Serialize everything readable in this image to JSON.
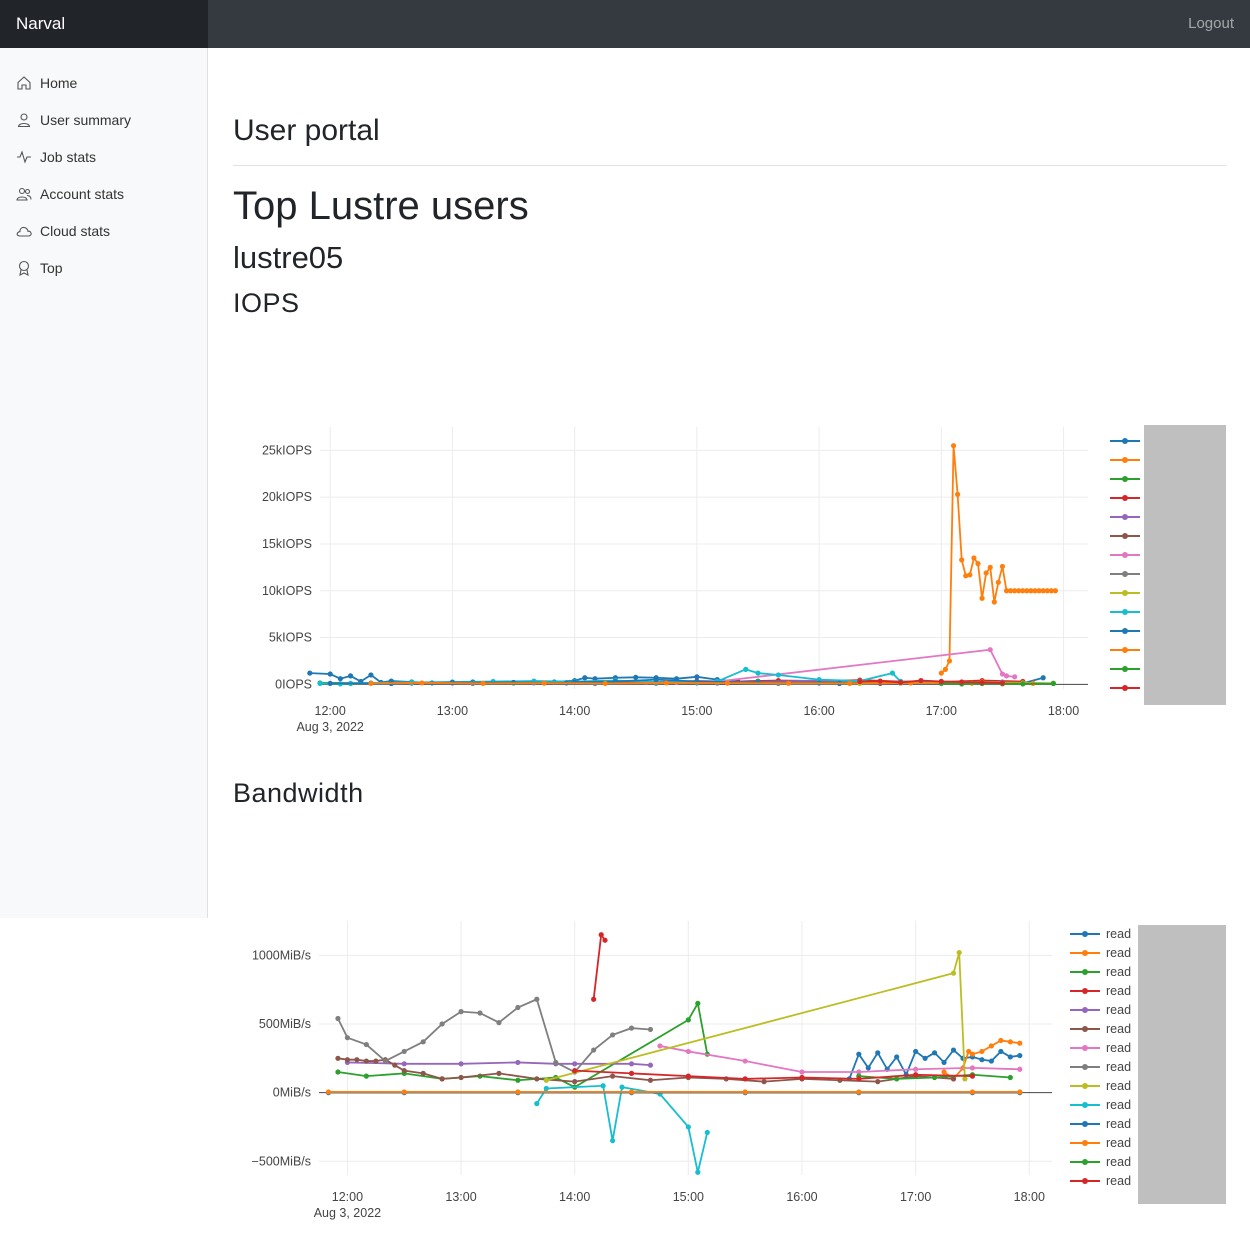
{
  "header": {
    "brand": "Narval",
    "logout": "Logout"
  },
  "sidebar": {
    "items": [
      {
        "label": "Home",
        "icon": "home-icon"
      },
      {
        "label": "User summary",
        "icon": "person-icon"
      },
      {
        "label": "Job stats",
        "icon": "activity-icon"
      },
      {
        "label": "Account stats",
        "icon": "people-icon"
      },
      {
        "label": "Cloud stats",
        "icon": "cloud-icon"
      },
      {
        "label": "Top",
        "icon": "award-icon"
      }
    ]
  },
  "main": {
    "title": "User portal",
    "section_title": "Top Lustre users",
    "filesystem": "lustre05",
    "iops_title": "IOPS",
    "bandwidth_title": "Bandwidth"
  },
  "chart_data": [
    {
      "type": "line",
      "title": "IOPS",
      "x_ticks": [
        "12:00",
        "13:00",
        "14:00",
        "15:00",
        "16:00",
        "17:00",
        "18:00"
      ],
      "x_date_label": "Aug 3, 2022",
      "xlim": [
        "11:55",
        "18:12"
      ],
      "y_ticks": [
        "0IOPS",
        "5kIOPS",
        "10kIOPS",
        "15kIOPS",
        "20kIOPS",
        "25kIOPS"
      ],
      "ylim": [
        -500,
        27500
      ],
      "grid": true,
      "legend_placement": "right",
      "colors": [
        "#1f77b4",
        "#ff7f0e",
        "#2ca02c",
        "#d62728",
        "#9467bd",
        "#8c564b",
        "#e377c2",
        "#7f7f7f",
        "#bcbd22",
        "#17becf",
        "#1f77b4",
        "#ff7f0e",
        "#2ca02c",
        "#d62728"
      ],
      "series": [
        {
          "x": [
            "11:50",
            "12:00",
            "12:05",
            "12:10",
            "12:15",
            "12:20",
            "12:25",
            "12:30",
            "12:40",
            "12:50",
            "13:00",
            "13:10",
            "13:20",
            "13:30",
            "13:40",
            "13:50",
            "14:00",
            "14:05",
            "14:10",
            "14:20",
            "14:30",
            "14:40",
            "14:50",
            "15:00",
            "15:10",
            "15:20",
            "15:30",
            "15:40",
            "15:50",
            "16:00",
            "16:10",
            "16:20",
            "16:30",
            "16:40",
            "16:50",
            "17:00",
            "17:10",
            "17:20",
            "17:30",
            "17:40",
            "17:50"
          ],
          "y": [
            1200,
            1100,
            600,
            900,
            300,
            1000,
            200,
            350,
            250,
            150,
            200,
            250,
            200,
            150,
            300,
            250,
            400,
            700,
            600,
            700,
            750,
            700,
            600,
            800,
            500,
            300,
            250,
            200,
            200,
            300,
            250,
            200,
            150,
            300,
            250,
            200,
            150,
            200,
            100,
            100,
            700
          ]
        },
        {
          "x": [
            "17:00",
            "17:02",
            "17:04",
            "17:06",
            "17:08",
            "17:10",
            "17:12",
            "17:14",
            "17:16",
            "17:18",
            "17:20",
            "17:22",
            "17:24",
            "17:26",
            "17:28",
            "17:30",
            "17:32",
            "17:34",
            "17:36",
            "17:38",
            "17:40",
            "17:42",
            "17:44",
            "17:46",
            "17:48",
            "17:50",
            "17:52",
            "17:54",
            "17:56"
          ],
          "y": [
            1200,
            1600,
            2500,
            25500,
            20300,
            13300,
            11600,
            11700,
            13500,
            12900,
            9200,
            11900,
            12500,
            8800,
            10900,
            12600,
            10000,
            10000,
            10000,
            10000,
            10000,
            10000,
            10000,
            10000,
            10000,
            10000,
            10000,
            10000,
            10000
          ]
        },
        {
          "x": [
            "11:55",
            "12:30",
            "13:00",
            "13:30",
            "14:00",
            "14:30",
            "15:00",
            "15:30",
            "16:00",
            "16:30",
            "17:00",
            "17:30",
            "17:55"
          ],
          "y": [
            150,
            100,
            200,
            150,
            300,
            250,
            200,
            350,
            250,
            200,
            300,
            150,
            100
          ]
        },
        {
          "x": [
            "14:40",
            "15:00",
            "15:20",
            "15:40",
            "16:00",
            "16:20",
            "16:40",
            "17:00",
            "17:20",
            "17:40"
          ],
          "y": [
            250,
            350,
            300,
            400,
            350,
            450,
            300,
            250,
            400,
            300
          ]
        },
        {
          "x": [
            "14:35",
            "15:00",
            "15:30",
            "16:00",
            "16:30",
            "17:00",
            "17:30"
          ],
          "y": [
            200,
            300,
            250,
            400,
            300,
            200,
            250
          ]
        },
        {
          "x": [
            "12:30",
            "13:00",
            "13:30",
            "14:00",
            "14:30",
            "15:00",
            "15:30",
            "16:00",
            "16:30",
            "17:00"
          ],
          "y": [
            100,
            150,
            200,
            250,
            200,
            150,
            200,
            150,
            100,
            200
          ]
        },
        {
          "x": [
            "14:50",
            "15:10",
            "17:24",
            "17:30",
            "17:32",
            "17:36"
          ],
          "y": [
            200,
            300,
            3700,
            1100,
            900,
            800
          ]
        },
        {
          "x": [
            "12:10",
            "12:40",
            "13:10",
            "13:40",
            "14:10",
            "14:40",
            "15:10",
            "15:40",
            "16:10",
            "16:40",
            "17:10"
          ],
          "y": [
            80,
            120,
            100,
            150,
            90,
            110,
            130,
            100,
            90,
            120,
            100
          ]
        },
        {
          "x": [
            "16:20",
            "16:40",
            "17:00",
            "17:20",
            "17:40",
            "17:55"
          ],
          "y": [
            100,
            150,
            200,
            250,
            150,
            100
          ]
        },
        {
          "x": [
            "11:55",
            "12:05",
            "12:10",
            "12:20",
            "12:40",
            "13:00",
            "13:20",
            "13:40",
            "14:00",
            "14:20",
            "14:40",
            "15:00",
            "15:10",
            "15:24",
            "15:30",
            "15:40",
            "16:00",
            "16:20",
            "16:36",
            "16:40",
            "17:00"
          ],
          "y": [
            100,
            50,
            100,
            150,
            200,
            250,
            300,
            350,
            300,
            400,
            250,
            200,
            300,
            1600,
            1200,
            1000,
            500,
            350,
            1200,
            300,
            200
          ]
        },
        {
          "x": [
            "12:00",
            "12:30",
            "13:00",
            "13:30",
            "13:56",
            "14:00",
            "14:20",
            "14:40",
            "15:00",
            "15:30",
            "16:00",
            "16:10"
          ],
          "y": [
            100,
            100,
            200,
            200,
            150,
            250,
            300,
            500,
            300,
            200,
            150,
            100
          ]
        },
        {
          "x": [
            "12:20",
            "12:45",
            "13:15",
            "13:45",
            "14:15",
            "14:45",
            "15:15",
            "15:45",
            "16:15",
            "16:45",
            "17:15",
            "17:45"
          ],
          "y": [
            100,
            150,
            100,
            120,
            100,
            150,
            130,
            110,
            100,
            140,
            120,
            100
          ]
        },
        {
          "x": [
            "17:00",
            "17:10",
            "17:20",
            "17:30",
            "17:40",
            "17:55"
          ],
          "y": [
            100,
            50,
            80,
            60,
            50,
            90
          ]
        },
        {
          "x": [
            "16:20",
            "16:30",
            "16:40",
            "16:50",
            "17:00",
            "17:10",
            "17:20",
            "17:30"
          ],
          "y": [
            300,
            350,
            200,
            400,
            300,
            250,
            200,
            150
          ]
        }
      ]
    },
    {
      "type": "line",
      "title": "Bandwidth",
      "x_ticks": [
        "12:00",
        "13:00",
        "14:00",
        "15:00",
        "16:00",
        "17:00",
        "18:00"
      ],
      "x_date_label": "Aug 3, 2022",
      "xlim": [
        "11:45",
        "18:12"
      ],
      "y_ticks": [
        "−500MiB/s",
        "0MiB/s",
        "500MiB/s",
        "1000MiB/s"
      ],
      "ylim": [
        -600,
        1250
      ],
      "grid": true,
      "legend_placement": "right",
      "legend_entries": [
        "read",
        "read",
        "read",
        "read",
        "read",
        "read",
        "read",
        "read",
        "read",
        "read",
        "read",
        "read",
        "read",
        "read"
      ],
      "colors": [
        "#1f77b4",
        "#ff7f0e",
        "#2ca02c",
        "#d62728",
        "#9467bd",
        "#8c564b",
        "#e377c2",
        "#7f7f7f",
        "#bcbd22",
        "#17becf",
        "#1f77b4",
        "#ff7f0e",
        "#2ca02c",
        "#d62728"
      ],
      "series": [
        {
          "name": "read",
          "x": [
            "16:25",
            "16:30",
            "16:35",
            "16:40",
            "16:45",
            "16:50",
            "16:55",
            "17:00",
            "17:05",
            "17:10",
            "17:15",
            "17:20",
            "17:25",
            "17:30",
            "17:35",
            "17:40",
            "17:45",
            "17:50",
            "17:55"
          ],
          "y": [
            100,
            280,
            180,
            290,
            170,
            260,
            130,
            300,
            250,
            290,
            220,
            310,
            250,
            260,
            240,
            230,
            300,
            260,
            270
          ]
        },
        {
          "name": "read",
          "x": [
            "17:15",
            "17:20",
            "17:25",
            "17:28",
            "17:30",
            "17:35",
            "17:40",
            "17:45",
            "17:50",
            "17:55"
          ],
          "y": [
            150,
            100,
            180,
            300,
            280,
            300,
            340,
            380,
            370,
            360
          ]
        },
        {
          "name": "read",
          "x": [
            "11:55",
            "12:10",
            "12:30",
            "12:50",
            "13:10",
            "13:30",
            "13:50",
            "14:00",
            "15:00",
            "15:05",
            "15:10"
          ],
          "y": [
            150,
            120,
            140,
            100,
            120,
            90,
            110,
            40,
            530,
            650,
            280
          ]
        },
        {
          "name": "read",
          "x": [
            "14:10",
            "14:14",
            "14:16"
          ],
          "y": [
            680,
            1150,
            1110
          ]
        },
        {
          "name": "read",
          "x": [
            "12:00",
            "12:30",
            "13:00",
            "13:30",
            "13:50",
            "14:00",
            "14:30",
            "14:40"
          ],
          "y": [
            220,
            210,
            210,
            220,
            210,
            210,
            210,
            200
          ]
        },
        {
          "name": "read",
          "x": [
            "11:55",
            "12:00",
            "12:05",
            "12:10",
            "12:15",
            "12:20",
            "12:25",
            "12:30",
            "12:40",
            "12:50",
            "13:00",
            "13:20",
            "13:40",
            "14:00",
            "14:20",
            "14:40",
            "15:00",
            "15:20",
            "15:40",
            "16:00",
            "16:20",
            "16:40",
            "17:00",
            "17:20"
          ],
          "y": [
            250,
            240,
            240,
            230,
            230,
            240,
            200,
            160,
            140,
            100,
            110,
            140,
            100,
            80,
            120,
            90,
            110,
            100,
            80,
            100,
            90,
            80,
            120,
            100
          ]
        },
        {
          "name": "read",
          "x": [
            "14:45",
            "15:00",
            "15:30",
            "16:00",
            "16:30",
            "17:00",
            "17:30",
            "17:55"
          ],
          "y": [
            340,
            300,
            230,
            150,
            150,
            170,
            180,
            170
          ]
        },
        {
          "name": "read",
          "x": [
            "11:55",
            "12:00",
            "12:10",
            "12:20",
            "12:30",
            "12:40",
            "12:50",
            "13:00",
            "13:10",
            "13:20",
            "13:30",
            "13:40",
            "13:50",
            "14:00",
            "14:10",
            "14:20",
            "14:30",
            "14:40"
          ],
          "y": [
            540,
            400,
            350,
            230,
            300,
            370,
            500,
            590,
            580,
            510,
            620,
            680,
            220,
            150,
            310,
            420,
            470,
            460
          ]
        },
        {
          "name": "read",
          "x": [
            "13:45",
            "17:20",
            "17:23",
            "17:26"
          ],
          "y": [
            90,
            870,
            1020,
            100
          ]
        },
        {
          "name": "read",
          "x": [
            "13:40",
            "13:45",
            "14:15",
            "14:20",
            "14:25",
            "14:45",
            "15:00",
            "15:05",
            "15:10"
          ],
          "y": [
            -80,
            30,
            50,
            -350,
            40,
            -10,
            -250,
            -580,
            -290
          ]
        },
        {
          "name": "read",
          "x": [
            "11:50",
            "12:30",
            "13:30",
            "14:30",
            "15:30",
            "16:30",
            "17:30",
            "17:55"
          ],
          "y": [
            0,
            0,
            0,
            0,
            0,
            0,
            0,
            0
          ]
        },
        {
          "name": "read",
          "x": [
            "11:50",
            "12:30",
            "13:30",
            "14:30",
            "15:30",
            "16:30",
            "17:30",
            "17:55"
          ],
          "y": [
            5,
            5,
            5,
            5,
            5,
            5,
            5,
            5
          ]
        },
        {
          "name": "read",
          "x": [
            "16:30",
            "16:50",
            "17:10",
            "17:30",
            "17:50"
          ],
          "y": [
            120,
            100,
            110,
            130,
            110
          ]
        },
        {
          "name": "read",
          "x": [
            "14:00",
            "14:30",
            "15:00",
            "15:30",
            "16:00",
            "16:30",
            "17:00",
            "17:30"
          ],
          "y": [
            160,
            140,
            120,
            100,
            110,
            100,
            130,
            120
          ]
        }
      ]
    }
  ]
}
